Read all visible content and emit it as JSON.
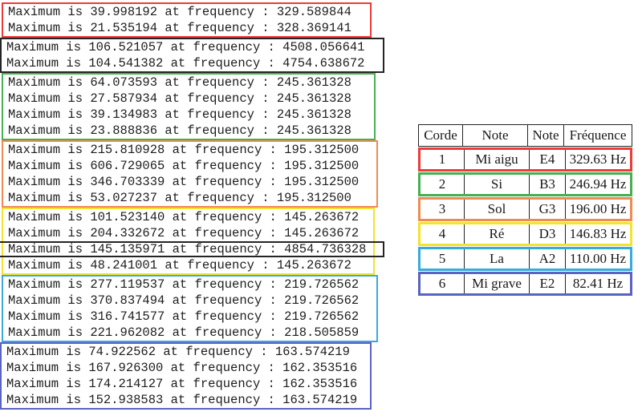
{
  "left_panel": {
    "groups": [
      {
        "name": "string-1-red",
        "border_color": "#ee3b37",
        "lines": [
          "Maximum is 39.998192 at frequency : 329.589844",
          "Maximum is 21.535194 at frequency : 328.369141"
        ]
      },
      {
        "name": "outlier-black-1",
        "border_color": "#242424",
        "lines": [
          "Maximum is 106.521057 at frequency : 4508.056641",
          "Maximum is 104.541382 at frequency : 4754.638672"
        ]
      },
      {
        "name": "string-2-green",
        "border_color": "#46b04e",
        "lines": [
          "Maximum is 64.073593 at frequency : 245.361328",
          "Maximum is 27.587934 at frequency : 245.361328",
          "Maximum is 39.134983 at frequency : 245.361328",
          "Maximum is 23.888836 at frequency : 245.361328"
        ]
      },
      {
        "name": "string-3-orange",
        "border_color": "#f08a52",
        "lines": [
          "Maximum is 215.810928 at frequency : 195.312500",
          "Maximum is 606.729065 at frequency : 195.312500",
          "Maximum is 346.703339 at frequency : 195.312500",
          "Maximum is 53.027237 at frequency : 195.312500"
        ]
      },
      {
        "name": "string-4-yellow",
        "border_color": "#f2e32c",
        "highlight": {
          "index": 2,
          "border_color": "#242424"
        },
        "lines": [
          "Maximum is 101.523140 at frequency : 145.263672",
          "Maximum is 204.332672 at frequency : 145.263672",
          "Maximum is 145.135971 at frequency : 4854.736328",
          "Maximum is 48.241001 at frequency : 145.263672"
        ]
      },
      {
        "name": "string-5-cyan",
        "border_color": "#38aade",
        "lines": [
          "Maximum is 277.119537 at frequency : 219.726562",
          "Maximum is 370.837494 at frequency : 219.726562",
          "Maximum is 316.741577 at frequency : 219.726562",
          "Maximum is 221.962082 at frequency : 218.505859"
        ]
      },
      {
        "name": "string-6-blue",
        "border_color": "#5a62c3",
        "lines": [
          "Maximum is 74.922562 at frequency : 163.574219",
          "Maximum is 167.926300 at frequency : 162.353516",
          "Maximum is 174.214127 at frequency : 162.353516",
          "Maximum is 152.938583 at frequency : 163.574219"
        ]
      }
    ]
  },
  "table": {
    "headers": [
      "Corde",
      "Note",
      "Note",
      "Fréquence"
    ],
    "rows": [
      {
        "corde": "1",
        "note_fr": "Mi aigu",
        "note_en": "E4",
        "frequency": "329.63 Hz",
        "border_color": "#ee3b37"
      },
      {
        "corde": "2",
        "note_fr": "Si",
        "note_en": "B3",
        "frequency": "246.94 Hz",
        "border_color": "#46b04e"
      },
      {
        "corde": "3",
        "note_fr": "Sol",
        "note_en": "G3",
        "frequency": "196.00 Hz",
        "border_color": "#f08a52"
      },
      {
        "corde": "4",
        "note_fr": "Ré",
        "note_en": "D3",
        "frequency": "146.83 Hz",
        "border_color": "#f2e32c"
      },
      {
        "corde": "5",
        "note_fr": "La",
        "note_en": "A2",
        "frequency": "110.00 Hz",
        "border_color": "#38aade"
      },
      {
        "corde": "6",
        "note_fr": "Mi grave",
        "note_en": "E2",
        "frequency": "82.41 Hz",
        "border_color": "#5a62c3"
      }
    ]
  }
}
